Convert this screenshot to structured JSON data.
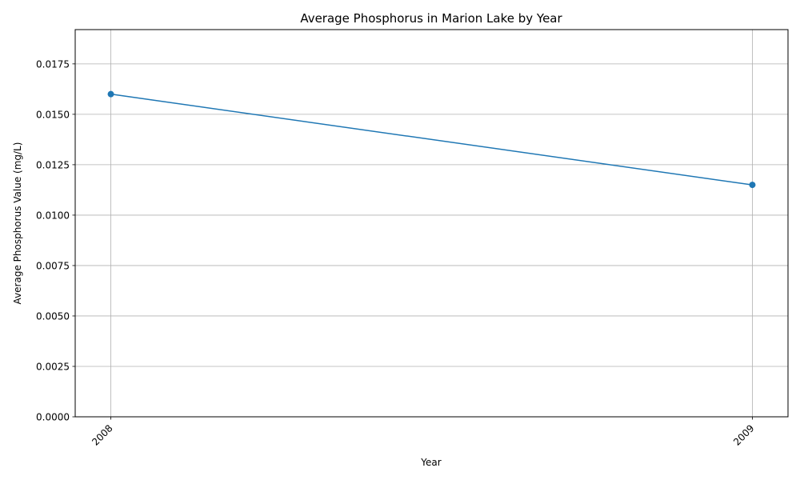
{
  "chart_data": {
    "type": "line",
    "title": "Average Phosphorus in Marion Lake by Year",
    "xlabel": "Year",
    "ylabel": "Average Phosphorus Value (mg/L)",
    "categories": [
      "2008",
      "2009"
    ],
    "series": [
      {
        "values": [
          0.016,
          0.0115
        ],
        "color": "#1f77b4",
        "marker": "circle"
      }
    ],
    "ylim": [
      0,
      0.0192
    ],
    "yticks": [
      "0.0000",
      "0.0025",
      "0.0050",
      "0.0075",
      "0.0100",
      "0.0125",
      "0.0150",
      "0.0175"
    ],
    "grid": true,
    "legend": "none"
  }
}
